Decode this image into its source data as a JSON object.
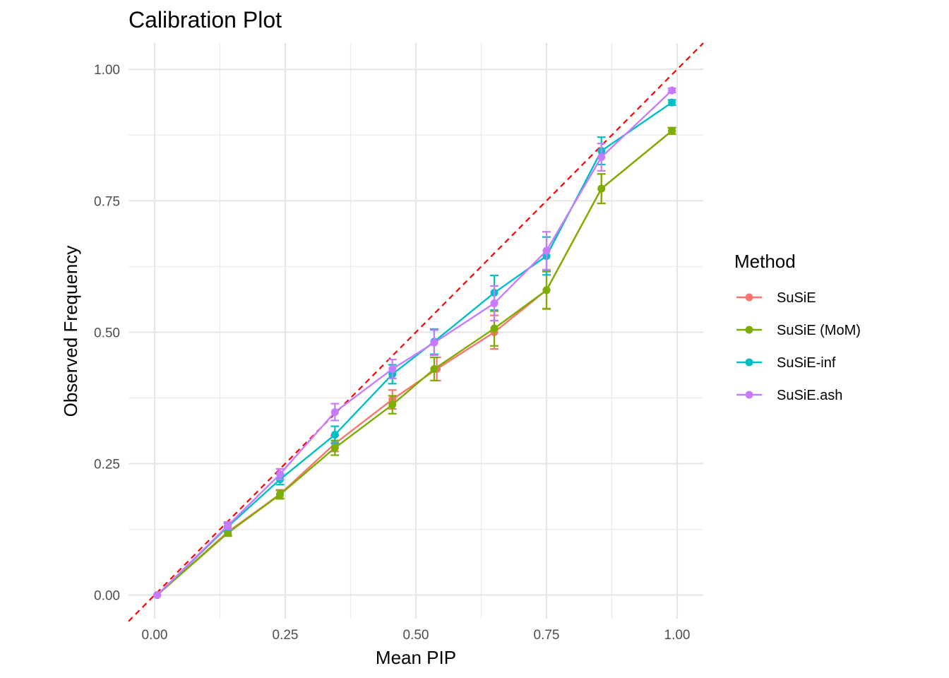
{
  "chart_data": {
    "type": "line",
    "title": "Calibration Plot",
    "xlabel": "Mean PIP",
    "ylabel": "Observed Frequency",
    "xlim": [
      -0.05,
      1.05
    ],
    "ylim": [
      -0.045,
      1.05
    ],
    "x_ticks": [
      "0.00",
      "0.25",
      "0.50",
      "0.75",
      "1.00"
    ],
    "y_ticks": [
      "0.00",
      "0.25",
      "0.50",
      "0.75",
      "1.00"
    ],
    "grid": true,
    "reference_line": {
      "slope": 1,
      "intercept": 0,
      "color": "#ff0000",
      "style": "dashed"
    },
    "legend": {
      "title": "Method",
      "position": "right"
    },
    "series": [
      {
        "name": "SuSiE",
        "color": "#f8766d",
        "x": [
          0.005,
          0.14,
          0.24,
          0.345,
          0.455,
          0.54,
          0.65,
          0.75,
          0.855,
          0.99
        ],
        "y": [
          0.0,
          0.12,
          0.192,
          0.288,
          0.372,
          0.43,
          0.5,
          0.58,
          0.773,
          0.883
        ],
        "err": [
          0.0,
          0.006,
          0.008,
          0.015,
          0.018,
          0.022,
          0.032,
          0.035,
          0.028,
          0.006
        ]
      },
      {
        "name": "SuSiE (MoM)",
        "color": "#7cae00",
        "x": [
          0.005,
          0.14,
          0.24,
          0.345,
          0.455,
          0.535,
          0.65,
          0.75,
          0.855,
          0.99
        ],
        "y": [
          0.0,
          0.118,
          0.191,
          0.28,
          0.362,
          0.43,
          0.507,
          0.58,
          0.773,
          0.883
        ],
        "err": [
          0.0,
          0.006,
          0.008,
          0.014,
          0.017,
          0.022,
          0.033,
          0.036,
          0.028,
          0.006
        ]
      },
      {
        "name": "SuSiE-inf",
        "color": "#00bfc4",
        "x": [
          0.005,
          0.14,
          0.24,
          0.345,
          0.455,
          0.535,
          0.65,
          0.75,
          0.855,
          0.99
        ],
        "y": [
          0.0,
          0.13,
          0.22,
          0.305,
          0.42,
          0.482,
          0.575,
          0.645,
          0.845,
          0.937
        ],
        "err": [
          0.0,
          0.007,
          0.01,
          0.016,
          0.018,
          0.024,
          0.033,
          0.036,
          0.026,
          0.005
        ]
      },
      {
        "name": "SuSiE.ash",
        "color": "#c77cff",
        "x": [
          0.005,
          0.14,
          0.24,
          0.345,
          0.455,
          0.535,
          0.65,
          0.75,
          0.855,
          0.99
        ],
        "y": [
          0.0,
          0.132,
          0.23,
          0.348,
          0.43,
          0.48,
          0.555,
          0.655,
          0.833,
          0.96
        ],
        "err": [
          0.0,
          0.007,
          0.01,
          0.016,
          0.018,
          0.024,
          0.033,
          0.036,
          0.026,
          0.004
        ]
      }
    ]
  }
}
